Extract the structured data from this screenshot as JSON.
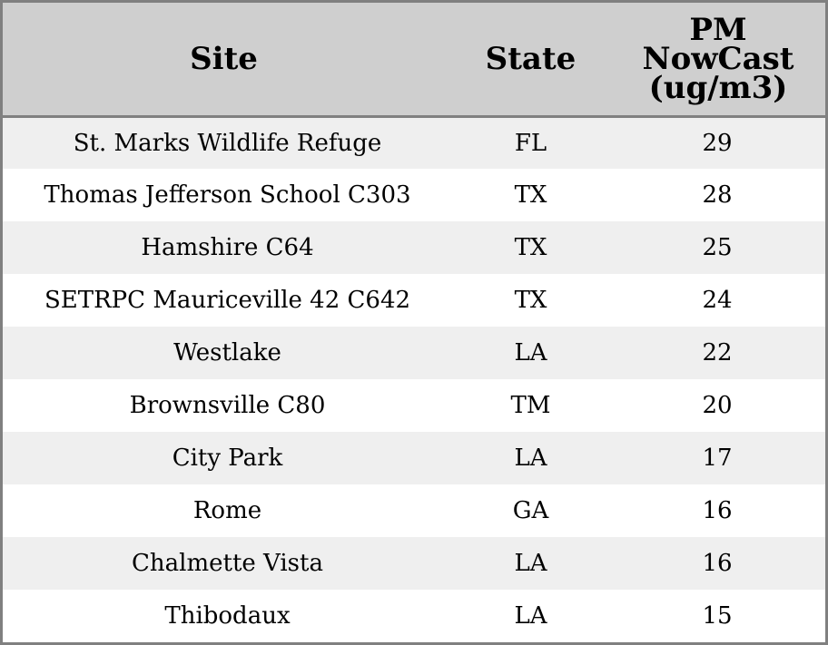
{
  "chart_data": {
    "type": "table",
    "columns": [
      "Site",
      "State",
      "PM NowCast (ug/m3)"
    ],
    "column_lines": {
      "site": [
        "Site"
      ],
      "state": [
        "State"
      ],
      "value": [
        "PM",
        "NowCast",
        "(ug/m3)"
      ]
    },
    "rows": [
      {
        "site": "St. Marks Wildlife Refuge",
        "state": "FL",
        "value": 29
      },
      {
        "site": "Thomas Jefferson School C303",
        "state": "TX",
        "value": 28
      },
      {
        "site": "Hamshire C64",
        "state": "TX",
        "value": 25
      },
      {
        "site": "SETRPC Mauriceville 42 C642",
        "state": "TX",
        "value": 24
      },
      {
        "site": "Westlake",
        "state": "LA",
        "value": 22
      },
      {
        "site": "Brownsville C80",
        "state": "TM",
        "value": 20
      },
      {
        "site": "City Park",
        "state": "LA",
        "value": 17
      },
      {
        "site": "Rome",
        "state": "GA",
        "value": 16
      },
      {
        "site": "Chalmette Vista",
        "state": "LA",
        "value": 16
      },
      {
        "site": "Thibodaux",
        "state": "LA",
        "value": 15
      }
    ],
    "colors": {
      "header_background": "#cfcfcf",
      "row_odd": "#efefef",
      "row_even": "#ffffff",
      "border": "#808080",
      "text": "#000000"
    }
  }
}
